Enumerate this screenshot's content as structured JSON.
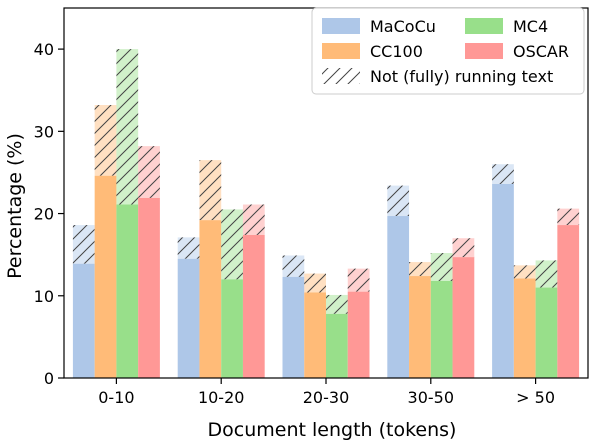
{
  "chart_data": {
    "type": "bar",
    "xlabel": "Document length (tokens)",
    "ylabel": "Percentage (%)",
    "ylim": [
      0,
      45
    ],
    "yticks": [
      0,
      10,
      20,
      30,
      40
    ],
    "categories": [
      "0-10",
      "10-20",
      "20-30",
      "30-50",
      "> 50"
    ],
    "series": [
      {
        "name": "MaCoCu",
        "color": "#aec7e8",
        "solid": [
          13.9,
          14.5,
          12.3,
          19.7,
          23.6
        ],
        "total": [
          18.6,
          17.1,
          14.9,
          23.4,
          26.0
        ]
      },
      {
        "name": "CC100",
        "color": "#ffbb78",
        "solid": [
          24.6,
          19.2,
          10.4,
          12.4,
          12.1
        ],
        "total": [
          33.2,
          26.5,
          12.7,
          14.1,
          13.7
        ]
      },
      {
        "name": "MC4",
        "color": "#98df8a",
        "solid": [
          21.1,
          12.0,
          7.8,
          11.8,
          11.0
        ],
        "total": [
          40.0,
          20.5,
          10.1,
          15.2,
          14.3
        ]
      },
      {
        "name": "OSCAR",
        "color": "#ff9896",
        "solid": [
          21.9,
          17.4,
          10.5,
          14.7,
          18.6
        ],
        "total": [
          28.2,
          21.1,
          13.3,
          17.0,
          20.6
        ]
      }
    ],
    "hatch_meaning": "Not (fully) running text",
    "legend_position": "top-right",
    "grid": false
  }
}
